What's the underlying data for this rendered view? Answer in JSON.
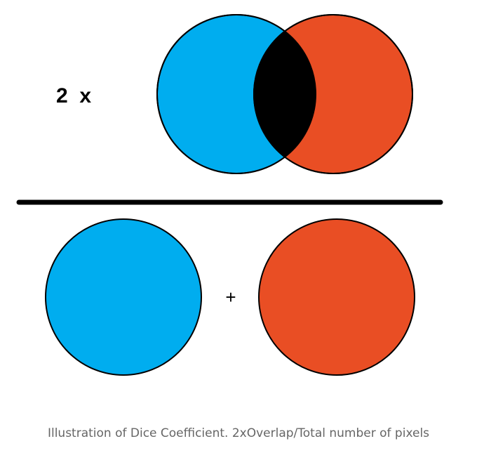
{
  "numerator": {
    "multiplier_label": "2  x"
  },
  "denominator": {
    "operator": "+"
  },
  "caption": "Illustration of Dice Coefficient. 2xOverlap/Total number of pixels",
  "colors": {
    "set_a": "#00adef",
    "set_b": "#e94e24",
    "overlap": "#000000",
    "fraction_bar": "#000000",
    "outline": "#000000",
    "caption_text": "#666666"
  }
}
